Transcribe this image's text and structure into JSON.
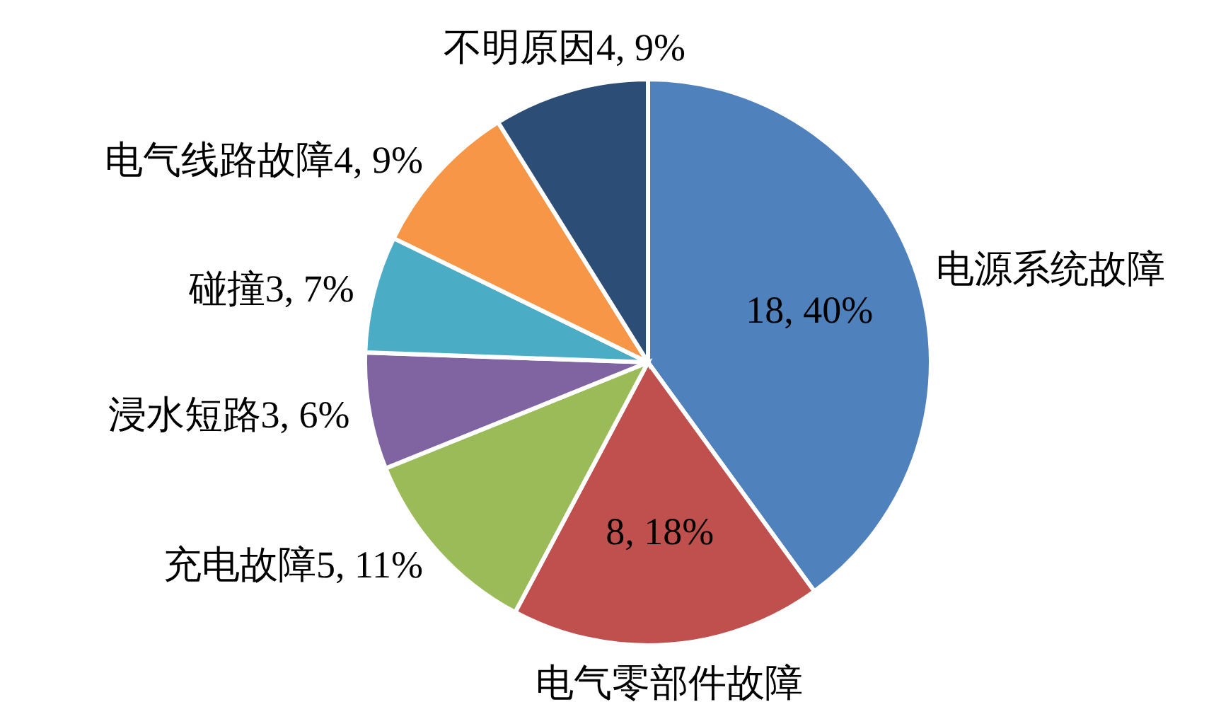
{
  "chart_data": {
    "type": "pie",
    "categories": [
      "电源系统故障",
      "电气零部件故障",
      "充电故障",
      "浸水短路",
      "碰撞",
      "电气线路故障",
      "不明原因"
    ],
    "values": [
      18,
      8,
      5,
      3,
      3,
      4,
      4
    ],
    "value_labels": [
      "18, 40%",
      "8, 18%",
      "5, 11%",
      "3, 6%",
      "3, 7%",
      "4, 9%",
      "4, 9%"
    ],
    "colors": [
      "#4f81bd",
      "#c0504d",
      "#9bbb59",
      "#8064a2",
      "#4bacc6",
      "#f79646",
      "#2c4d75"
    ]
  }
}
